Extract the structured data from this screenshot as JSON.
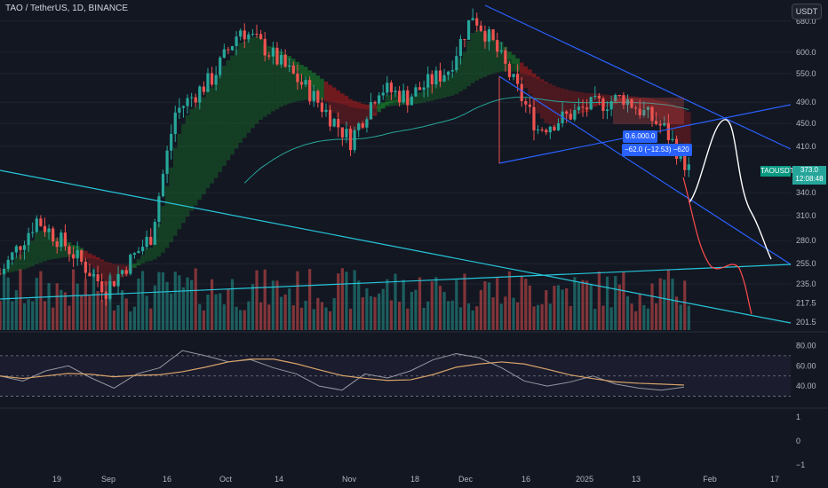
{
  "header": {
    "title": "TAO / TetherUS, 1D, BINANCE",
    "currency_button": "USDT"
  },
  "price_axis": {
    "labels": [
      "680.0",
      "600.0",
      "550.0",
      "490.0",
      "450.0",
      "410.0",
      "340.0",
      "310.0",
      "280.0",
      "255.0",
      "235.0",
      "217.5",
      "201.5"
    ],
    "values": [
      680,
      600,
      550,
      490,
      450,
      410,
      340,
      310,
      280,
      255,
      235,
      217.5,
      201.5
    ],
    "scale": "log"
  },
  "rsi_axis": {
    "labels": [
      "80.00",
      "60.00",
      "40.00"
    ],
    "values": [
      80,
      60,
      40
    ]
  },
  "extra_axis": {
    "labels": [
      "1",
      "0",
      "−1"
    ],
    "values": [
      1,
      0,
      -1
    ]
  },
  "time_axis": {
    "labels": [
      "19",
      "Sep",
      "16",
      "Oct",
      "14",
      "Nov",
      "18",
      "Dec",
      "16",
      "2025",
      "13",
      "Feb",
      "17"
    ]
  },
  "last_price": {
    "symbol_tag": "TAOUSDT",
    "price": "373.0",
    "countdown": "12:08:48"
  },
  "annotations": [
    {
      "text": "0.­6.­­0­0­0.­0"
    },
    {
      "text": "−62.0 (−12.53) −620"
    }
  ],
  "colors": {
    "background": "#131722",
    "up": "#26a69a",
    "down": "#ef5350",
    "channel": "#2962ff",
    "trendline": "#26c6da",
    "ma_long": "#26a69a",
    "rsi_line": "#9598a1",
    "rsi_ma": "#d7a36a"
  },
  "chart_data": {
    "type": "candlestick",
    "symbol": "TAO / TetherUS",
    "interval": "1D",
    "exchange": "BINANCE",
    "x_range": [
      "2024-08-10",
      "2025-02-20"
    ],
    "y_range": [
      195,
      720
    ],
    "y_scale": "log",
    "price_path": [
      {
        "date": "2024-08-10",
        "close": 245
      },
      {
        "date": "2024-08-19",
        "close": 305
      },
      {
        "date": "2024-08-26",
        "close": 275
      },
      {
        "date": "2024-09-05",
        "close": 230
      },
      {
        "date": "2024-09-16",
        "close": 285
      },
      {
        "date": "2024-09-22",
        "close": 470
      },
      {
        "date": "2024-10-01",
        "close": 540
      },
      {
        "date": "2024-10-08",
        "close": 660
      },
      {
        "date": "2024-10-14",
        "close": 610
      },
      {
        "date": "2024-10-24",
        "close": 520
      },
      {
        "date": "2024-11-04",
        "close": 420
      },
      {
        "date": "2024-11-11",
        "close": 520
      },
      {
        "date": "2024-11-18",
        "close": 500
      },
      {
        "date": "2024-11-28",
        "close": 560
      },
      {
        "date": "2024-12-04",
        "close": 700
      },
      {
        "date": "2024-12-09",
        "close": 620
      },
      {
        "date": "2024-12-20",
        "close": 440
      },
      {
        "date": "2025-01-01",
        "close": 480
      },
      {
        "date": "2025-01-10",
        "close": 500
      },
      {
        "date": "2025-01-20",
        "close": 440
      },
      {
        "date": "2025-01-26",
        "close": 373
      }
    ],
    "last_price": 373.0,
    "rsi": {
      "period": 14,
      "levels": [
        70,
        50,
        30
      ],
      "values": [
        50,
        45,
        55,
        60,
        48,
        38,
        52,
        58,
        75,
        70,
        64,
        66,
        58,
        52,
        40,
        36,
        52,
        48,
        55,
        66,
        72,
        68,
        58,
        45,
        40,
        44,
        50,
        42,
        38,
        36,
        39
      ]
    },
    "ma_long_label": "",
    "drawings": {
      "descending_channel": true,
      "ascending_trendline": true,
      "projection_white": true,
      "projection_red": true
    }
  }
}
